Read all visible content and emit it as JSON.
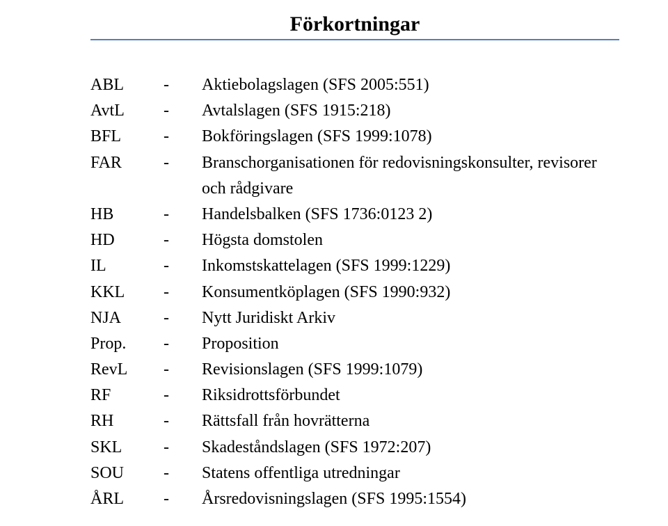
{
  "title": "Förkortningar",
  "rule_color": "#4f81bd",
  "font_family": "Times New Roman, Times, serif",
  "title_fontsize": 30,
  "body_fontsize": 24,
  "text_color": "#000000",
  "background_color": "#ffffff",
  "dash": "-",
  "items": [
    {
      "abbr": "ABL",
      "def": "Aktiebolagslagen (SFS 2005:551)"
    },
    {
      "abbr": "AvtL",
      "def": "Avtalslagen (SFS 1915:218)"
    },
    {
      "abbr": "BFL",
      "def": "Bokföringslagen (SFS 1999:1078)"
    },
    {
      "abbr": "FAR",
      "def": "Branschorganisationen för redovisningskonsulter, revisorer och rådgivare"
    },
    {
      "abbr": "HB",
      "def": "Handelsbalken (SFS 1736:0123 2)"
    },
    {
      "abbr": "HD",
      "def": "Högsta domstolen"
    },
    {
      "abbr": "IL",
      "def": "Inkomstskattelagen (SFS 1999:1229)"
    },
    {
      "abbr": "KKL",
      "def": "Konsumentköplagen (SFS 1990:932)"
    },
    {
      "abbr": "NJA",
      "def": "Nytt Juridiskt Arkiv"
    },
    {
      "abbr": "Prop.",
      "def": "Proposition"
    },
    {
      "abbr": "RevL",
      "def": "Revisionslagen (SFS 1999:1079)"
    },
    {
      "abbr": "RF",
      "def": "Riksidrottsförbundet"
    },
    {
      "abbr": "RH",
      "def": "Rättsfall från hovrätterna"
    },
    {
      "abbr": "SKL",
      "def": "Skadeståndslagen (SFS 1972:207)"
    },
    {
      "abbr": "SOU",
      "def": "Statens offentliga utredningar"
    },
    {
      "abbr": "ÅRL",
      "def": "Årsredovisningslagen (SFS 1995:1554)"
    }
  ]
}
